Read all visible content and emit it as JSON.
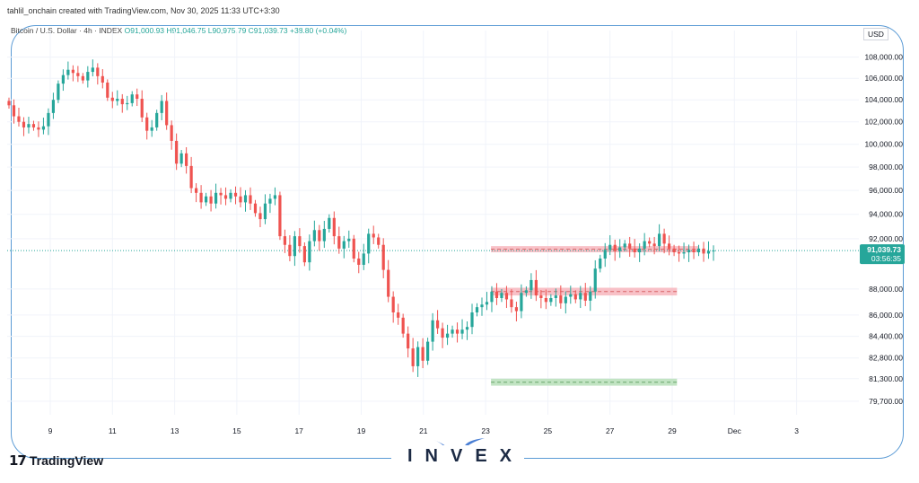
{
  "header": {
    "text": "tahlil_onchain created with TradingView.com, Nov 30, 2025 11:33 UTC+3:30"
  },
  "symbol": {
    "name": "Bitcoin / U.S. Dollar · 4h · INDEX",
    "o": "O91,000.93",
    "h": "H91,046.75",
    "l": "L90,975.79",
    "c": "C91,039.73",
    "change": "+38.80 (+0.04%)"
  },
  "currency": "USD",
  "price_label": {
    "value": "91,039.73",
    "countdown": "03:56:35"
  },
  "brand": {
    "tradingview": "TradingView",
    "invex": "INVEX"
  },
  "colors": {
    "up": "#26a69a",
    "down": "#ef5350",
    "resistance": "#f7b6bd",
    "support": "#b7dfb9",
    "frame": "#5b9bd5"
  },
  "chart_data": {
    "type": "candlestick",
    "title": "Bitcoin / U.S. Dollar · 4h · INDEX",
    "x_ticks": [
      "9",
      "11",
      "13",
      "15",
      "17",
      "19",
      "21",
      "23",
      "25",
      "27",
      "29",
      "Dec",
      "3"
    ],
    "y_ticks": [
      108000,
      106000,
      104000,
      102000,
      100000,
      98000,
      96000,
      94000,
      92000,
      88000,
      86000,
      84400,
      82800,
      81300,
      79700
    ],
    "y_tick_labels": [
      "108,000.00",
      "106,000.00",
      "104,000.00",
      "102,000.00",
      "100,000.00",
      "98,000.00",
      "96,000.00",
      "94,000.00",
      "92,000.00",
      "88,000.00",
      "86,000.00",
      "84,400.00",
      "82,800.00",
      "81,300.00",
      "79,700.00"
    ],
    "scale": "log",
    "ylim": [
      79000,
      109000
    ],
    "current_price": 91039.73,
    "zones": [
      {
        "kind": "resistance",
        "low": 90900,
        "high": 91400,
        "from": "Nov 23",
        "to": "Nov 29"
      },
      {
        "kind": "resistance",
        "low": 87500,
        "high": 88100,
        "from": "Nov 23",
        "to": "Nov 28"
      },
      {
        "kind": "support",
        "low": 80800,
        "high": 81300,
        "from": "Nov 23",
        "to": "Nov 28"
      }
    ],
    "closes": [
      103500,
      102500,
      102000,
      101500,
      101800,
      101500,
      101300,
      101600,
      102800,
      104000,
      105500,
      106300,
      106800,
      106500,
      106200,
      105800,
      106600,
      107000,
      106200,
      105600,
      104200,
      103900,
      104100,
      103600,
      103700,
      104500,
      104100,
      102400,
      101200,
      101500,
      102800,
      103900,
      101700,
      100300,
      98300,
      99200,
      98100,
      96200,
      95800,
      95000,
      95500,
      94900,
      95800,
      95600,
      95300,
      95800,
      95500,
      95000,
      95600,
      94900,
      94100,
      93600,
      94900,
      95300,
      95600,
      92200,
      91500,
      90600,
      92200,
      91400,
      90100,
      91800,
      92700,
      91800,
      92800,
      93700,
      92200,
      91200,
      91800,
      92000,
      90400,
      89900,
      90800,
      92400,
      92100,
      91500,
      89500,
      87400,
      86200,
      85800,
      84600,
      83500,
      82200,
      83600,
      82600,
      84000,
      85600,
      85000,
      84300,
      84600,
      84900,
      84600,
      84900,
      85100,
      86200,
      86600,
      86800,
      87000,
      87800,
      87300,
      87700,
      87200,
      86600,
      86300,
      87700,
      87900,
      88700,
      87500,
      87300,
      87000,
      87300,
      87500,
      86900,
      87400,
      87600,
      87200,
      87700,
      87100,
      87800,
      89600,
      90400,
      91100,
      91500,
      91000,
      91300,
      91600,
      91200,
      90900,
      91200,
      91800,
      91600,
      91400,
      92400,
      91600,
      91200,
      90900,
      90800,
      90900,
      91100,
      90900,
      91200,
      90800,
      91000,
      91040
    ]
  }
}
